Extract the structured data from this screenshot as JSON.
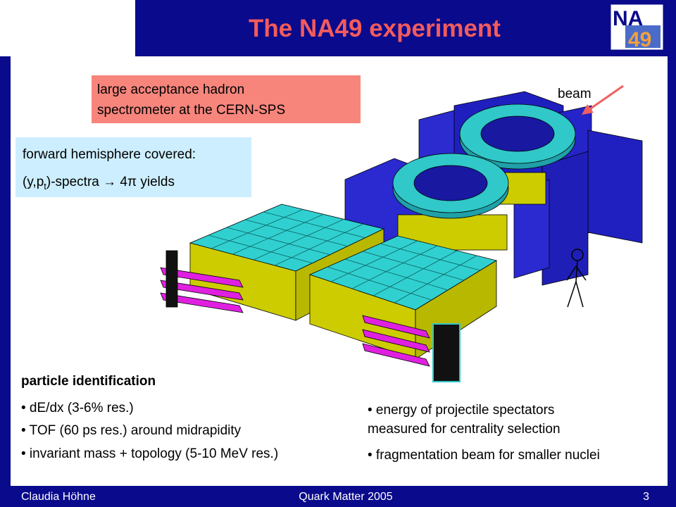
{
  "header": {
    "title": "The NA49 experiment",
    "logo": {
      "top": "NA",
      "bottom": "49"
    }
  },
  "acceptance_box": {
    "lines": [
      "large acceptance hadron",
      "spectrometer at the CERN-SPS"
    ]
  },
  "coverage_box": {
    "line1": "forward hemisphere covered:",
    "line2": [
      "(y,p",
      "t",
      ")-spectra  →  4π  yields"
    ]
  },
  "diagram": {
    "beam_label": "beam"
  },
  "particle_id": {
    "heading": "particle identification",
    "items": [
      "• dE/dx (3-6% res.)",
      "• TOF (60 ps res.) around midrapidity",
      "• invariant mass + topology (5-10 MeV res.)"
    ]
  },
  "centrality": {
    "items": [
      "• energy of projectile spectators",
      "measured for centrality selection",
      "• fragmentation beam for smaller nuclei"
    ]
  },
  "footer": {
    "author": "Claudia Höhne",
    "event": "Quark Matter 2005",
    "page": "3"
  }
}
